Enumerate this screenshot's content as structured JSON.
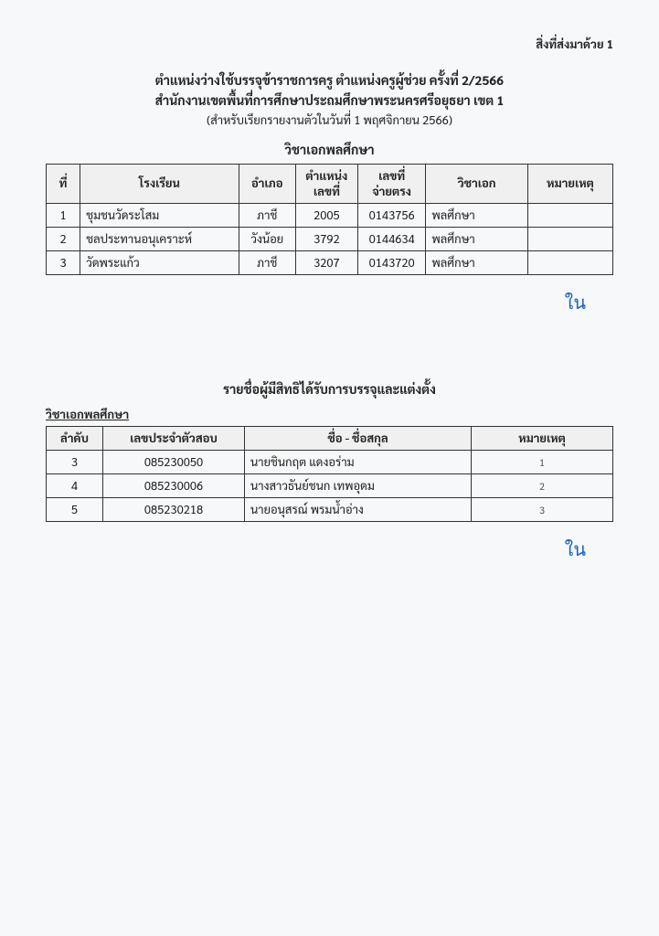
{
  "attachment_label": "สิ่งที่ส่งมาด้วย 1",
  "title": {
    "line1": "ตำแหน่งว่างใช้บรรจุข้าราชการครู ตำแหน่งครูผู้ช่วย ครั้งที่ 2/2566",
    "line2": "สำนักงานเขตพื้นที่การศึกษาประถมศึกษาพระนครศรีอยุธยา เขต 1",
    "line3": "(สำหรับเรียกรายงานตัวในวันที่ 1 พฤศจิกายน 2566)"
  },
  "subject_heading": "วิชาเอกพลศึกษา",
  "table1": {
    "headers": {
      "no": "ที่",
      "school": "โรงเรียน",
      "district": "อำเภอ",
      "position_no": "ตำแหน่ง\nเลขที่",
      "pay_no": "เลขที่\nจ่ายตรง",
      "major": "วิชาเอก",
      "remark": "หมายเหตุ"
    },
    "rows": [
      {
        "no": "1",
        "school": "ชุมชนวัดระโสม",
        "district": "ภาชี",
        "position_no": "2005",
        "pay_no": "0143756",
        "major": "พลศึกษา",
        "remark": ""
      },
      {
        "no": "2",
        "school": "ชลประทานอนุเคราะห์",
        "district": "วังน้อย",
        "position_no": "3792",
        "pay_no": "0144634",
        "major": "พลศึกษา",
        "remark": ""
      },
      {
        "no": "3",
        "school": "วัดพระแก้ว",
        "district": "ภาชี",
        "position_no": "3207",
        "pay_no": "0143720",
        "major": "พลศึกษา",
        "remark": ""
      }
    ],
    "col_widths": [
      "6%",
      "28%",
      "10%",
      "11%",
      "12%",
      "18%",
      "15%"
    ]
  },
  "section2_title": "รายชื่อผู้มีสิทธิได้รับการบรรจุและแต่งตั้ง",
  "section2_subhead": "วิชาเอกพลศึกษา",
  "table2": {
    "headers": {
      "rank": "ลำดับ",
      "exam_id": "เลขประจำตัวสอบ",
      "name": "ชื่อ - ชื่อสกุล",
      "remark": "หมายเหตุ"
    },
    "rows": [
      {
        "rank": "3",
        "exam_id": "085230050",
        "name": "นายชินกฤต   แดงอร่าม",
        "remark": "1"
      },
      {
        "rank": "4",
        "exam_id": "085230006",
        "name": "นางสาวธันย์ชนก   เทพอุดม",
        "remark": "2"
      },
      {
        "rank": "5",
        "exam_id": "085230218",
        "name": "นายอนุสรณ์   พรมน้ำอ่าง",
        "remark": "3"
      }
    ],
    "col_widths": [
      "10%",
      "25%",
      "40%",
      "25%"
    ]
  },
  "signature_mark": "ใน"
}
